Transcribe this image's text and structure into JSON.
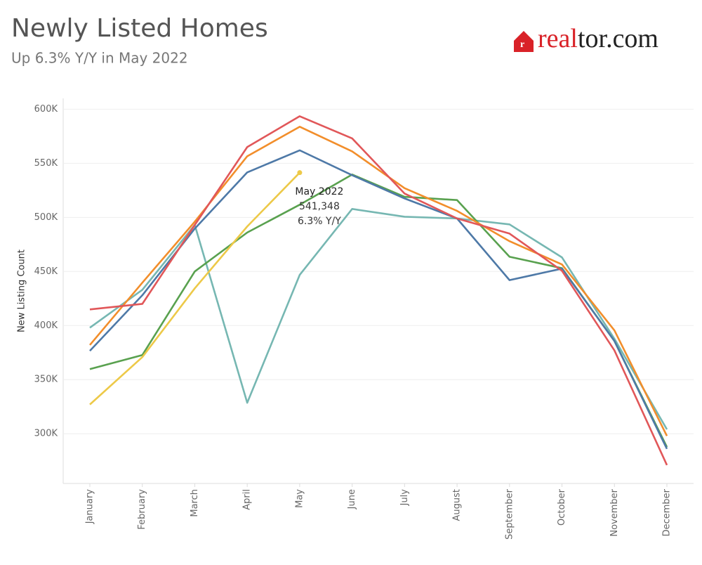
{
  "chart_data": {
    "type": "line",
    "title": "Newly Listed Homes",
    "subtitle": "Up 6.3% Y/Y in May 2022",
    "logo": [
      "real",
      "tor.com"
    ],
    "y_label": "New Listing Count",
    "categories": [
      "January",
      "February",
      "March",
      "April",
      "May",
      "June",
      "July",
      "August",
      "September",
      "October",
      "November",
      "December"
    ],
    "series": [
      {
        "color": "#76b7b2",
        "values": [
          398000,
          433000,
          493000,
          328600,
          446800,
          507800,
          500600,
          499000,
          493500,
          463000,
          387700,
          304000
        ]
      },
      {
        "color": "#59a14f",
        "values": [
          359700,
          372700,
          450000,
          486000,
          511700,
          539600,
          519000,
          516000,
          463600,
          453000,
          385700,
          287700
        ]
      },
      {
        "color": "#4e79a7",
        "values": [
          376600,
          428000,
          489600,
          541600,
          562000,
          539000,
          517500,
          499000,
          442000,
          452600,
          385700,
          286000
        ]
      },
      {
        "color": "#f28e2b",
        "values": [
          382000,
          439600,
          496000,
          556500,
          583800,
          561000,
          527000,
          506000,
          478000,
          456500,
          395500,
          298000
        ]
      },
      {
        "color": "#e15759",
        "values": [
          414900,
          420000,
          493000,
          565000,
          593500,
          573000,
          522000,
          499000,
          485000,
          450600,
          377000,
          271000
        ]
      },
      {
        "color": "#edc948",
        "values": [
          327000,
          370800,
          434400,
          491600,
          541348,
          null,
          null,
          null,
          null,
          null,
          null,
          null
        ]
      }
    ],
    "annotation": {
      "lines": [
        "May 2022",
        "541,348",
        "6.3% Y/Y"
      ]
    },
    "ylim": [
      254000,
      610000
    ],
    "yticks": [
      {
        "value": 300000,
        "label": "300K"
      },
      {
        "value": 350000,
        "label": "350K"
      },
      {
        "value": 400000,
        "label": "400K"
      },
      {
        "value": 450000,
        "label": "450K"
      },
      {
        "value": 500000,
        "label": "500K"
      },
      {
        "value": 550000,
        "label": "550K"
      },
      {
        "value": 600000,
        "label": "600K"
      }
    ],
    "grid": true
  }
}
